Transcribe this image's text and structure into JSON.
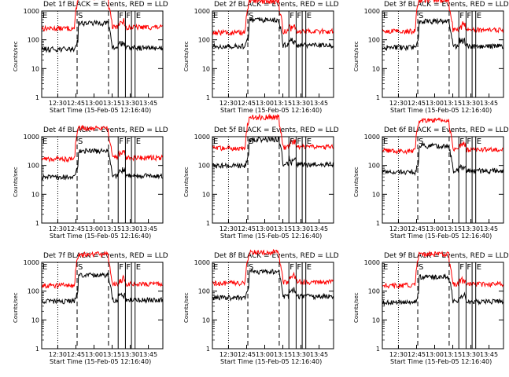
{
  "chart_data": {
    "type": "line",
    "xlabel": "Start Time (15-Feb-05 12:16:40)",
    "ylabel": "Counts/sec",
    "x_tick_labels": [
      "12:30",
      "12:45",
      "13:00",
      "13:15",
      "13:30",
      "13:45"
    ],
    "x_tick_minutes": [
      30,
      45,
      60,
      75,
      90,
      105
    ],
    "xlim_minutes": [
      16.67,
      117
    ],
    "ylim": [
      1,
      1000
    ],
    "y_tick_labels": [
      "1",
      "10",
      "100",
      "1000"
    ],
    "y_tick_values": [
      1,
      10,
      100,
      1000
    ],
    "markers": [
      {
        "label": "E",
        "minute": 16.67,
        "style": "solid"
      },
      {
        "label": "",
        "minute": 30,
        "style": "dotted"
      },
      {
        "label": "S",
        "minute": 46,
        "style": "dashed"
      },
      {
        "label": "",
        "minute": 72,
        "style": "dashed"
      },
      {
        "label": "F",
        "minute": 80,
        "style": "solid"
      },
      {
        "label": "F",
        "minute": 86,
        "style": "solid"
      },
      {
        "label": "",
        "minute": 91,
        "style": "solid"
      },
      {
        "label": "E",
        "minute": 94,
        "style": "solid"
      }
    ],
    "series_colors": {
      "events": "#000000",
      "lld": "#ff0000"
    },
    "panels": [
      {
        "title": "Det 1f BLACK = Events, RED = LLD",
        "events": 48,
        "lld": 250
      },
      {
        "title": "Det 2f BLACK = Events, RED = LLD",
        "events": 60,
        "lld": 180
      },
      {
        "title": "Det 3f BLACK = Events, RED = LLD",
        "events": 55,
        "lld": 200
      },
      {
        "title": "Det 4f BLACK = Events, RED = LLD",
        "events": 40,
        "lld": 170
      },
      {
        "title": "Det 5f BLACK = Events, RED = LLD",
        "events": 100,
        "lld": 400
      },
      {
        "title": "Det 6f BLACK = Events, RED = LLD",
        "events": 60,
        "lld": 320
      },
      {
        "title": "Det 7f BLACK = Events, RED = LLD",
        "events": 45,
        "lld": 160
      },
      {
        "title": "Det 8f BLACK = Events, RED = LLD",
        "events": 60,
        "lld": 190
      },
      {
        "title": "Det 9f BLACK = Events, RED = LLD",
        "events": 40,
        "lld": 160
      }
    ]
  }
}
